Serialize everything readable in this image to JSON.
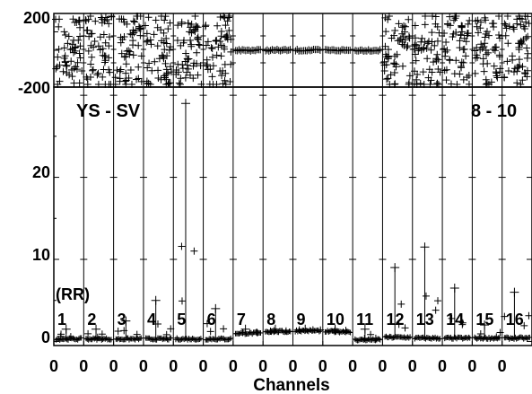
{
  "chart_data": {
    "type": "scatter",
    "annotation_left": "YS - SV",
    "annotation_right": "8 - 10",
    "unit_label": "(RR)",
    "xlabel": "Channels",
    "channels": [
      "1",
      "2",
      "3",
      "4",
      "5",
      "6",
      "7",
      "8",
      "9",
      "10",
      "11",
      "12",
      "13",
      "14",
      "15",
      "16"
    ],
    "x_tick_labels": [
      "0",
      "0",
      "0",
      "0",
      "0",
      "0",
      "0",
      "0",
      "0",
      "0",
      "0",
      "0",
      "0",
      "0",
      "0",
      "0"
    ],
    "grid": false,
    "phase_panel": {
      "ylim": [
        -200,
        200
      ],
      "y_tick_labels": [
        "200",
        "-200"
      ],
      "channel_behavior": [
        "random",
        "random",
        "random",
        "random",
        "random",
        "random",
        "constant",
        "constant",
        "constant",
        "constant",
        "constant",
        "random",
        "random",
        "random",
        "random",
        "random"
      ],
      "constant_level": 0
    },
    "amplitude_panel": {
      "ylim": [
        -0.5,
        31
      ],
      "y_ticks": [
        0,
        10,
        20
      ],
      "y_tick_labels": [
        "0",
        "10",
        "20"
      ],
      "baseline_per_channel": [
        0.3,
        0.3,
        0.3,
        0.3,
        0.3,
        0.3,
        1.0,
        1.2,
        1.3,
        1.2,
        0.2,
        0.5,
        0.4,
        0.4,
        0.4,
        0.4
      ],
      "max_spike_per_channel": [
        1.5,
        1.5,
        2.5,
        5.0,
        29.0,
        4.0,
        1.5,
        1.5,
        1.5,
        1.5,
        1.5,
        9.0,
        11.5,
        6.5,
        2.0,
        6.0
      ]
    }
  }
}
